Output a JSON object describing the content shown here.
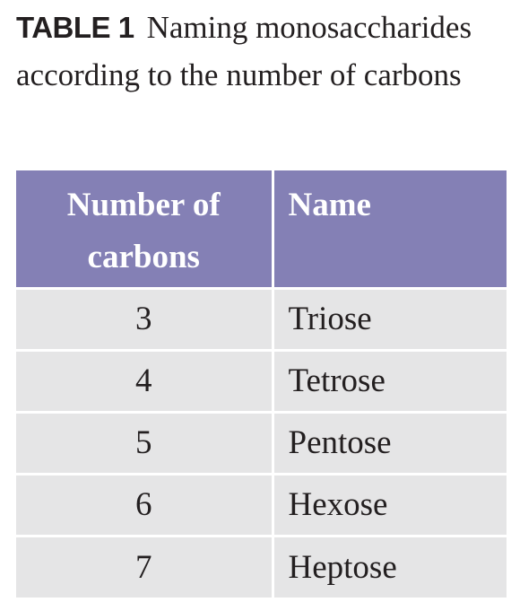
{
  "caption": {
    "label": "TABLE 1",
    "text": "Naming monosaccharides according to the number of carbons"
  },
  "table": {
    "headers": [
      "Number of carbons",
      "Name"
    ],
    "rows": [
      [
        "3",
        "Triose"
      ],
      [
        "4",
        "Tetrose"
      ],
      [
        "5",
        "Pentose"
      ],
      [
        "6",
        "Hexose"
      ],
      [
        "7",
        "Heptose"
      ]
    ]
  }
}
